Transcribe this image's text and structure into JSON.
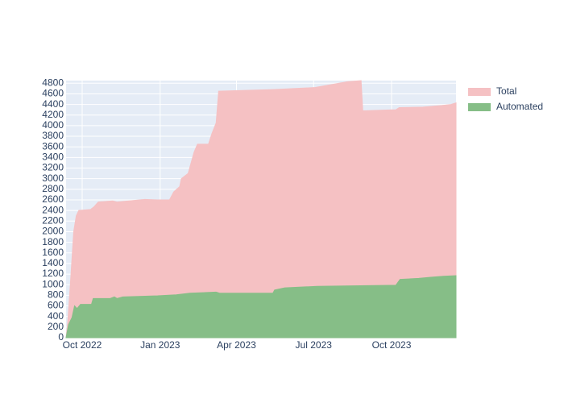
{
  "chart_data": {
    "type": "area",
    "xlim": [
      "2022-09-12",
      "2023-12-16"
    ],
    "xticks": [
      {
        "value": "2022-10-01",
        "label": "Oct 2022"
      },
      {
        "value": "2023-01-01",
        "label": "Jan 2023"
      },
      {
        "value": "2023-04-01",
        "label": "Apr 2023"
      },
      {
        "value": "2023-07-01",
        "label": "Jul 2023"
      },
      {
        "value": "2023-10-01",
        "label": "Oct 2023"
      }
    ],
    "ylim": [
      0,
      4850
    ],
    "yticks": [
      0,
      200,
      400,
      600,
      800,
      1000,
      1200,
      1400,
      1600,
      1800,
      2000,
      2200,
      2400,
      2600,
      2800,
      3000,
      3200,
      3400,
      3600,
      3800,
      4000,
      4200,
      4400,
      4600,
      4800
    ],
    "grid": true,
    "series": [
      {
        "name": "Total",
        "color": "#f5c1c3",
        "x": [
          "2022-09-12",
          "2022-09-14",
          "2022-09-17",
          "2022-09-21",
          "2022-09-24",
          "2022-09-27",
          "2022-10-11",
          "2022-10-15",
          "2022-10-20",
          "2022-11-06",
          "2022-11-11",
          "2022-12-14",
          "2022-12-29",
          "2023-01-12",
          "2023-01-17",
          "2023-01-24",
          "2023-01-26",
          "2023-02-03",
          "2023-02-10",
          "2023-02-14",
          "2023-02-27",
          "2023-03-03",
          "2023-03-08",
          "2023-03-11",
          "2023-05-14",
          "2023-07-03",
          "2023-08-10",
          "2023-08-26",
          "2023-08-28",
          "2023-10-06",
          "2023-10-10",
          "2023-11-07",
          "2023-11-29",
          "2023-12-10",
          "2023-12-16"
        ],
        "values": [
          0,
          300,
          1000,
          2000,
          2300,
          2400,
          2420,
          2470,
          2560,
          2580,
          2560,
          2610,
          2600,
          2600,
          2750,
          2850,
          3000,
          3100,
          3500,
          3650,
          3650,
          3850,
          4050,
          4650,
          4680,
          4720,
          4830,
          4850,
          4280,
          4300,
          4340,
          4350,
          4380,
          4400,
          4430
        ]
      },
      {
        "name": "Automated",
        "color": "#86be87",
        "x": [
          "2022-09-12",
          "2022-09-15",
          "2022-09-19",
          "2022-09-22",
          "2022-09-25",
          "2022-09-29",
          "2022-10-12",
          "2022-10-14",
          "2022-11-03",
          "2022-11-08",
          "2022-11-11",
          "2022-11-18",
          "2022-12-29",
          "2023-01-20",
          "2023-02-05",
          "2023-03-08",
          "2023-03-12",
          "2023-05-14",
          "2023-05-16",
          "2023-05-28",
          "2023-07-05",
          "2023-10-06",
          "2023-10-11",
          "2023-11-02",
          "2023-11-16",
          "2023-12-01",
          "2023-12-16"
        ],
        "values": [
          0,
          250,
          380,
          600,
          550,
          630,
          630,
          740,
          740,
          770,
          740,
          770,
          790,
          810,
          840,
          860,
          840,
          840,
          900,
          940,
          970,
          990,
          1100,
          1120,
          1140,
          1160,
          1170
        ]
      }
    ]
  }
}
